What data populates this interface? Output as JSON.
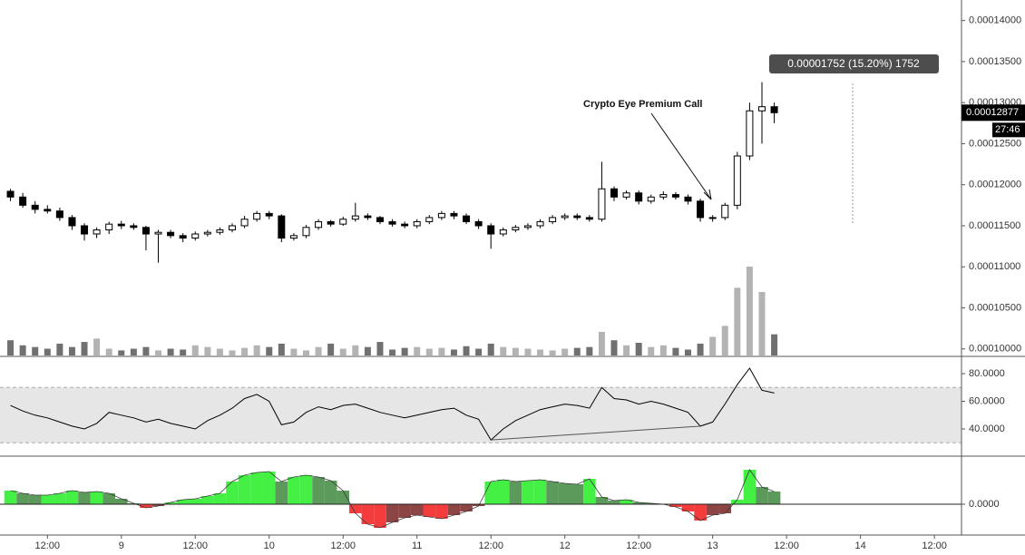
{
  "chart_data": [
    {
      "type": "candlestick",
      "x": [
        6,
        8,
        10,
        12,
        14,
        16,
        18,
        20,
        22,
        24,
        26,
        28,
        30,
        32,
        34,
        36,
        38,
        40,
        42,
        44,
        46,
        48,
        50,
        52,
        54,
        56,
        58,
        60,
        62,
        64,
        66,
        68,
        70,
        72,
        74,
        76,
        78,
        80,
        82,
        84,
        86,
        88,
        90,
        92,
        94,
        96,
        98,
        100,
        102,
        104,
        106,
        108,
        110,
        112,
        114,
        116,
        118,
        120,
        122,
        124,
        126,
        128,
        130
      ],
      "open": [
        0.0001192,
        0.0001185,
        0.0001175,
        0.000117,
        0.0001168,
        0.000116,
        0.000115,
        0.000114,
        0.0001145,
        0.0001152,
        0.000115,
        0.0001148,
        0.000114,
        0.0001142,
        0.0001138,
        0.0001135,
        0.000114,
        0.0001142,
        0.0001145,
        0.000115,
        0.0001158,
        0.0001165,
        0.0001162,
        0.0001135,
        0.0001138,
        0.0001148,
        0.0001155,
        0.0001152,
        0.0001158,
        0.0001162,
        0.000116,
        0.0001155,
        0.0001152,
        0.000115,
        0.0001155,
        0.000116,
        0.0001165,
        0.0001162,
        0.0001155,
        0.000115,
        0.000114,
        0.0001145,
        0.0001148,
        0.000115,
        0.0001155,
        0.000116,
        0.0001162,
        0.000116,
        0.0001158,
        0.0001195,
        0.0001185,
        0.000119,
        0.000118,
        0.0001185,
        0.0001188,
        0.0001185,
        0.000118,
        0.000116,
        0.000116,
        0.0001175,
        0.0001235,
        0.000129,
        0.0001295
      ],
      "high": [
        0.0001195,
        0.000119,
        0.000118,
        0.0001175,
        0.0001172,
        0.0001163,
        0.0001153,
        0.0001148,
        0.0001155,
        0.0001156,
        0.0001153,
        0.000115,
        0.0001145,
        0.0001145,
        0.0001141,
        0.0001143,
        0.0001145,
        0.0001148,
        0.0001153,
        0.0001162,
        0.0001168,
        0.0001168,
        0.0001164,
        0.0001141,
        0.0001151,
        0.0001158,
        0.0001157,
        0.0001161,
        0.0001178,
        0.0001165,
        0.0001162,
        0.0001158,
        0.0001155,
        0.0001158,
        0.0001163,
        0.0001168,
        0.0001168,
        0.0001165,
        0.0001158,
        0.0001153,
        0.0001148,
        0.0001151,
        0.0001153,
        0.0001158,
        0.0001163,
        0.0001165,
        0.0001165,
        0.0001163,
        0.0001228,
        0.0001198,
        0.0001193,
        0.0001193,
        0.0001188,
        0.0001192,
        0.0001191,
        0.0001188,
        0.0001183,
        0.0001163,
        0.0001178,
        0.000124,
        0.00013,
        0.0001325,
        0.00013
      ],
      "low": [
        0.000118,
        0.0001172,
        0.0001165,
        0.0001165,
        0.0001156,
        0.0001145,
        0.0001132,
        0.0001135,
        0.000114,
        0.0001146,
        0.0001145,
        0.000112,
        0.0001105,
        0.0001135,
        0.000113,
        0.0001132,
        0.0001137,
        0.0001139,
        0.0001142,
        0.0001147,
        0.0001155,
        0.0001158,
        0.000113,
        0.0001132,
        0.0001135,
        0.0001145,
        0.0001149,
        0.000115,
        0.0001155,
        0.0001157,
        0.0001152,
        0.0001149,
        0.0001147,
        0.0001147,
        0.0001152,
        0.0001157,
        0.0001158,
        0.0001152,
        0.0001146,
        0.0001122,
        0.0001137,
        0.0001142,
        0.0001145,
        0.0001147,
        0.0001152,
        0.0001157,
        0.0001157,
        0.0001155,
        0.0001155,
        0.000118,
        0.0001182,
        0.0001176,
        0.0001177,
        0.0001182,
        0.0001182,
        0.0001176,
        0.0001155,
        0.0001155,
        0.0001157,
        0.000117,
        0.000123,
        0.000125,
        0.0001275
      ],
      "close": [
        0.0001185,
        0.0001175,
        0.000117,
        0.0001168,
        0.000116,
        0.000115,
        0.000114,
        0.0001145,
        0.0001152,
        0.000115,
        0.0001148,
        0.000114,
        0.0001142,
        0.0001138,
        0.0001135,
        0.000114,
        0.0001142,
        0.0001145,
        0.000115,
        0.0001158,
        0.0001165,
        0.0001162,
        0.0001135,
        0.0001138,
        0.0001148,
        0.0001155,
        0.0001152,
        0.0001158,
        0.0001162,
        0.000116,
        0.0001155,
        0.0001152,
        0.000115,
        0.0001155,
        0.000116,
        0.0001165,
        0.0001162,
        0.0001155,
        0.000115,
        0.000114,
        0.0001145,
        0.0001148,
        0.000115,
        0.0001155,
        0.000116,
        0.0001162,
        0.000116,
        0.0001158,
        0.0001195,
        0.0001185,
        0.000119,
        0.000118,
        0.0001185,
        0.0001188,
        0.0001185,
        0.000118,
        0.000116,
        0.000116,
        0.0001175,
        0.0001235,
        0.000129,
        0.0001295,
        0.00012877
      ],
      "up_color": "#ffffff",
      "down_color": "#000000",
      "ylim": [
        9.92e-05,
        0.0001425
      ],
      "yticks": [
        {
          "value": 0.0001,
          "label": "0.00010000"
        },
        {
          "value": 0.000105,
          "label": "0.00010500"
        },
        {
          "value": 0.00011,
          "label": "0.00011000"
        },
        {
          "value": 0.000115,
          "label": "0.00011500"
        },
        {
          "value": 0.00012,
          "label": "0.00012000"
        },
        {
          "value": 0.000125,
          "label": "0.00012500"
        },
        {
          "value": 0.00013,
          "label": "0.00013000"
        },
        {
          "value": 0.000135,
          "label": "0.00013500"
        },
        {
          "value": 0.00014,
          "label": "0.00014000"
        }
      ],
      "last_price": {
        "value": 0.00012877,
        "label": "0.00012877"
      },
      "countdown": "27:46",
      "measure_label": "0.00001752 (15.20%) 1752",
      "annotation": "Crypto Eye Premium Call"
    },
    {
      "type": "bar",
      "values": [
        18,
        12,
        10,
        8,
        14,
        10,
        16,
        20,
        8,
        6,
        8,
        10,
        6,
        8,
        7,
        12,
        10,
        8,
        6,
        9,
        12,
        10,
        14,
        8,
        6,
        10,
        14,
        8,
        12,
        10,
        16,
        7,
        9,
        10,
        8,
        9,
        7,
        11,
        8,
        14,
        10,
        9,
        8,
        7,
        6,
        8,
        9,
        10,
        28,
        18,
        12,
        15,
        10,
        12,
        9,
        7,
        14,
        22,
        35,
        80,
        105,
        75,
        25
      ],
      "up_color": "#b3b3b3",
      "down_color": "#707070",
      "ylim": [
        0,
        420
      ]
    },
    {
      "type": "line",
      "values": [
        57,
        53,
        50,
        48,
        45,
        42,
        40,
        44,
        52,
        50,
        48,
        45,
        47,
        44,
        42,
        40,
        46,
        50,
        55,
        62,
        65,
        60,
        43,
        45,
        52,
        56,
        54,
        57,
        58,
        55,
        52,
        50,
        48,
        50,
        52,
        54,
        55,
        50,
        47,
        32,
        40,
        46,
        50,
        54,
        56,
        58,
        57,
        55,
        70,
        62,
        61,
        58,
        60,
        58,
        55,
        52,
        42,
        45,
        58,
        72,
        84,
        68,
        66
      ],
      "color": "#000000",
      "band": [
        30,
        70
      ],
      "band_color": "#e6e6e6",
      "trendline": {
        "x": [
          84,
          118
        ],
        "y": [
          32,
          42
        ]
      },
      "ylim": [
        20.3,
        92.5
      ],
      "yticks": [
        {
          "value": 40,
          "label": "40.0000"
        },
        {
          "value": 60,
          "label": "60.0000"
        },
        {
          "value": 80,
          "label": "80.0000"
        }
      ]
    },
    {
      "type": "area",
      "values": [
        1.5e-06,
        1.2e-06,
        1e-06,
        1e-06,
        1.2e-06,
        1.5e-06,
        1.3e-06,
        1.4e-06,
        1.2e-06,
        6e-07,
        1e-07,
        -4e-07,
        -2e-07,
        2e-07,
        5e-07,
        6e-07,
        9e-07,
        1.2e-06,
        2.5e-06,
        3.2e-06,
        3.5e-06,
        3.6e-06,
        2.5e-06,
        3e-06,
        3.2e-06,
        3e-06,
        2.6e-06,
        1.5e-06,
        -1e-06,
        -2.2e-06,
        -2.6e-06,
        -2e-06,
        -1.5e-06,
        -1.2e-06,
        -1.4e-06,
        -1.6e-06,
        -1.2e-06,
        -8e-07,
        -2e-07,
        2.5e-06,
        2.7e-06,
        2.5e-06,
        2.6e-06,
        2.7e-06,
        2.5e-06,
        2.3e-06,
        2.2e-06,
        2.8e-06,
        8e-07,
        4e-07,
        5e-07,
        2e-07,
        1e-07,
        0,
        -3e-07,
        -8e-07,
        -1.8e-06,
        -1.2e-06,
        -1e-06,
        5e-07,
        3.8e-06,
        1.9e-06,
        1.4e-06
      ],
      "palette": [
        "#45f045",
        "#5b9a5b",
        "#f53c3c",
        "#8c4444"
      ],
      "ylim": [
        -3.4e-06,
        5.3e-06
      ],
      "yticks": [
        {
          "value": 0,
          "label": "0.0000"
        }
      ]
    }
  ],
  "x_axis": {
    "xlim": [
      4.3,
      160.4
    ],
    "xticks": [
      {
        "value": 12,
        "label": "12:00"
      },
      {
        "value": 24,
        "label": "9"
      },
      {
        "value": 36,
        "label": "12:00"
      },
      {
        "value": 48,
        "label": "10"
      },
      {
        "value": 60,
        "label": "12:00"
      },
      {
        "value": 72,
        "label": "11"
      },
      {
        "value": 84,
        "label": "12:00"
      },
      {
        "value": 96,
        "label": "12"
      },
      {
        "value": 108,
        "label": "12:00"
      },
      {
        "value": 120,
        "label": "13"
      },
      {
        "value": 132,
        "label": "12:00"
      },
      {
        "value": 144,
        "label": "14"
      },
      {
        "value": 156,
        "label": "12:00"
      }
    ]
  }
}
